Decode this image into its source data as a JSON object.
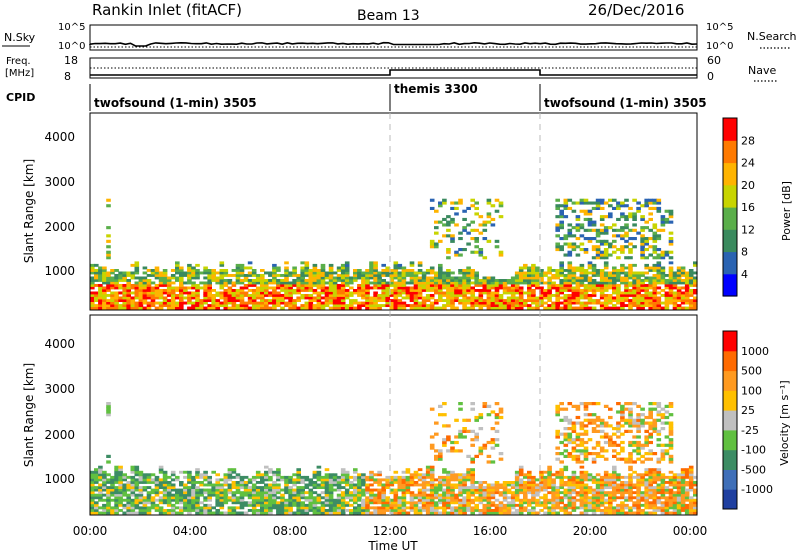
{
  "header": {
    "title": "Rankin Inlet (fitACF)",
    "beam": "Beam 13",
    "date": "26/Dec/2016"
  },
  "strips": {
    "nsky_label": "N.Sky",
    "nsky_ticks": [
      "10^5",
      "10^0"
    ],
    "nsearch_label": "N.Search",
    "nsearch_ticks": [
      "10^5",
      "10^0"
    ],
    "freq_label": "Freq.",
    "freq_unit": "[MHz]",
    "freq_ticks": [
      "18",
      "8"
    ],
    "nave_label": "Nave",
    "nave_ticks": [
      "60",
      "0"
    ],
    "cpid_label": "CPID",
    "cpid_segments": [
      {
        "label": "twofsound (1-min) 3505",
        "start_hour": 0
      },
      {
        "label": "themis 3300",
        "start_hour": 12
      },
      {
        "label": "twofsound (1-min) 3505",
        "start_hour": 18
      }
    ]
  },
  "power_panel": {
    "ylabel": "Slant Range [km]",
    "yticks": [
      "1000",
      "2000",
      "3000",
      "4000"
    ],
    "colorbar_title": "Power [dB]",
    "colorbar_ticks": [
      "28",
      "24",
      "20",
      "16",
      "12",
      "8",
      "4"
    ],
    "colors": [
      "#0000ff",
      "#2a63b2",
      "#3a8a5e",
      "#5aae4a",
      "#c8d400",
      "#ffb400",
      "#ff7a00",
      "#ff0000"
    ]
  },
  "velocity_panel": {
    "ylabel": "Slant Range [km]",
    "yticks": [
      "1000",
      "2000",
      "3000",
      "4000"
    ],
    "colorbar_title": "Velocity [m s⁻¹]",
    "colorbar_ticks": [
      "1000",
      "500",
      "100",
      "25",
      "-25",
      "-100",
      "-500",
      "-1000"
    ],
    "colors": [
      "#1f3fa0",
      "#3f6fb8",
      "#3c8c64",
      "#60c040",
      "#c0c0c0",
      "#ffc000",
      "#ff9a20",
      "#ff6a00",
      "#ff0000"
    ]
  },
  "time_axis": {
    "xlabel": "Time UT",
    "ticks": [
      "00:00",
      "04:00",
      "08:00",
      "12:00",
      "16:00",
      "20:00",
      "00:00"
    ]
  },
  "chart_data": [
    {
      "type": "line",
      "title": "N.Sky / N.Search",
      "x_range_hours": [
        0,
        24
      ],
      "ylim": [
        1,
        100000
      ],
      "log_scale": true
    },
    {
      "type": "line",
      "title": "Freq. / Nave",
      "x_range_hours": [
        0,
        24
      ],
      "ylim_freq_mhz": [
        8,
        18
      ],
      "ylim_nave": [
        0,
        60
      ]
    },
    {
      "type": "heatmap",
      "title": "Power",
      "x_range_hours": [
        0,
        24
      ],
      "ylim_km": [
        180,
        4500
      ],
      "color_scale_db": [
        0,
        32
      ],
      "echo_regions": [
        {
          "t0": 0.5,
          "t1": 24,
          "r0": 200,
          "r1": 1300,
          "power_db": 18
        },
        {
          "t0": 13.5,
          "t1": 16.5,
          "r0": 1300,
          "r1": 2600,
          "power_db": 12
        },
        {
          "t0": 18.5,
          "t1": 23,
          "r0": 1300,
          "r1": 2600,
          "power_db": 16
        }
      ]
    },
    {
      "type": "heatmap",
      "title": "Velocity",
      "x_range_hours": [
        0,
        24
      ],
      "ylim_km": [
        180,
        4500
      ],
      "color_scale_ms": [
        -1000,
        1000
      ]
    }
  ]
}
